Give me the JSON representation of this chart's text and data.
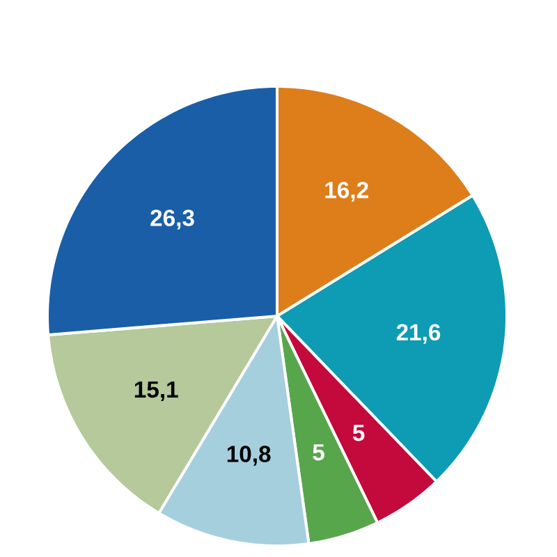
{
  "chart_data": {
    "type": "pie",
    "categories": [
      null,
      null,
      null,
      null,
      null,
      null,
      null
    ],
    "values": [
      16.2,
      21.6,
      5,
      5,
      10.8,
      15.1,
      26.3
    ],
    "value_labels": [
      "16,2",
      "21,6",
      "5",
      "5",
      "10,8",
      "15,1",
      "26,3"
    ],
    "colors": [
      "#dd7e1b",
      "#0e9bb4",
      "#c4093c",
      "#58a64c",
      "#a5cfdd",
      "#b5c99b",
      "#1a5ea8"
    ]
  }
}
